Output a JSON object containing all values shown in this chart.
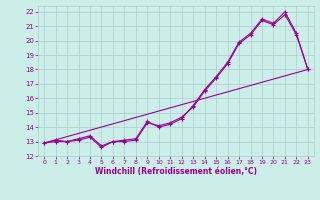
{
  "xlabel": "Windchill (Refroidissement éolien,°C)",
  "ylabel": "",
  "xlim": [
    -0.5,
    23.5
  ],
  "ylim": [
    12,
    22.4
  ],
  "xticks": [
    0,
    1,
    2,
    3,
    4,
    5,
    6,
    7,
    8,
    9,
    10,
    11,
    12,
    13,
    14,
    15,
    16,
    17,
    18,
    19,
    20,
    21,
    22,
    23
  ],
  "yticks": [
    12,
    13,
    14,
    15,
    16,
    17,
    18,
    19,
    20,
    21,
    22
  ],
  "line_color": "#990099",
  "bg_color": "#cceee8",
  "grid_color": "#aacccc",
  "line1_x": [
    0,
    1,
    2,
    3,
    4,
    5,
    6,
    7,
    8,
    9,
    10,
    11,
    12,
    13,
    14,
    15,
    16,
    17,
    18,
    19,
    20,
    21,
    22,
    23
  ],
  "line1_y": [
    12.9,
    13.1,
    13.0,
    13.1,
    13.3,
    12.6,
    13.0,
    13.1,
    13.2,
    14.4,
    14.0,
    14.2,
    14.6,
    15.5,
    16.6,
    17.5,
    18.5,
    19.9,
    20.5,
    21.5,
    21.2,
    22.0,
    20.5,
    18.0
  ],
  "line2_x": [
    0,
    1,
    2,
    3,
    4,
    5,
    6,
    7,
    8,
    9,
    10,
    11,
    12,
    13,
    14,
    15,
    16,
    17,
    18,
    19,
    20,
    21,
    22,
    23
  ],
  "line2_y": [
    12.9,
    13.0,
    13.0,
    13.2,
    13.4,
    12.7,
    13.0,
    13.0,
    13.1,
    14.3,
    14.1,
    14.3,
    14.7,
    15.4,
    16.5,
    17.4,
    18.4,
    19.8,
    20.4,
    21.4,
    21.1,
    21.8,
    20.4,
    18.0
  ],
  "line3_x": [
    0,
    23
  ],
  "line3_y": [
    12.9,
    18.0
  ]
}
